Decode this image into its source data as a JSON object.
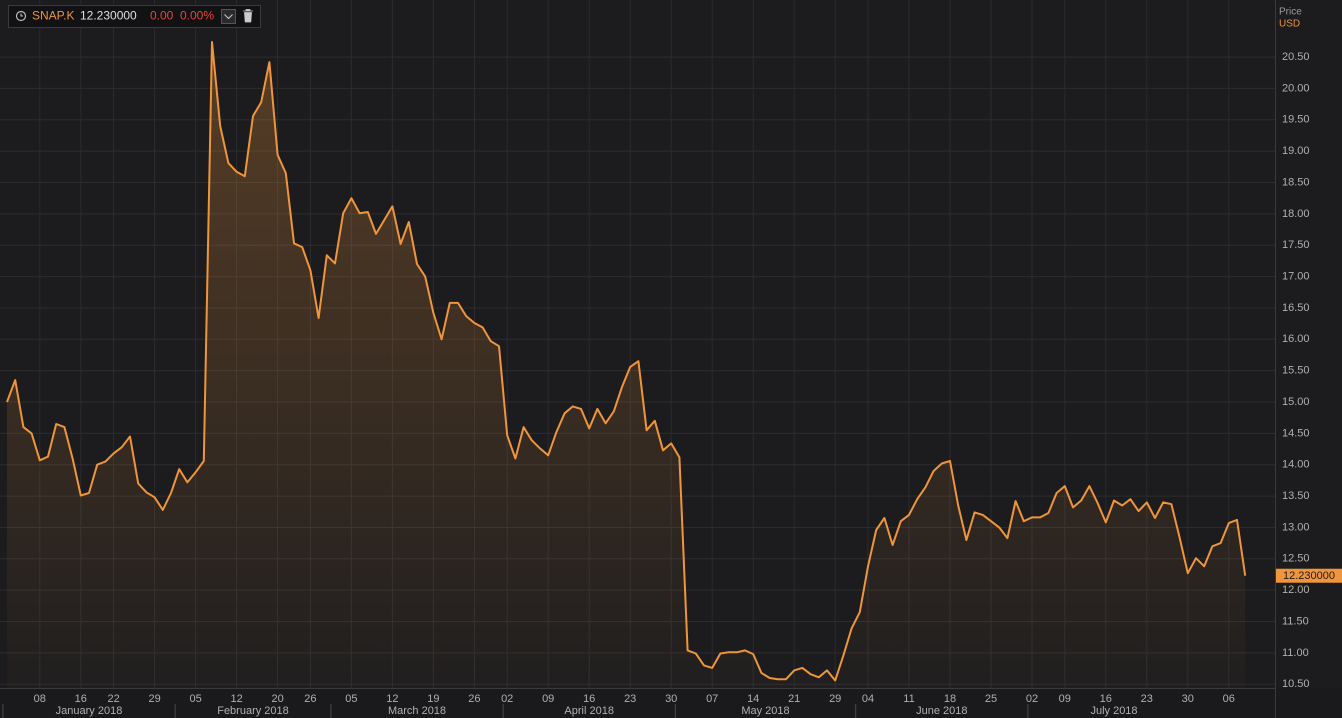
{
  "header": {
    "symbol": "SNAP.K",
    "price": "12.230000",
    "change": "0.00",
    "change_pct": "0.00%"
  },
  "chart_data": {
    "type": "line",
    "y_axis_title": "Price",
    "y_axis_unit": "USD",
    "color": "#f0953a",
    "grid": true,
    "values": [
      15.0,
      15.35,
      14.6,
      14.5,
      14.07,
      14.13,
      14.65,
      14.6,
      14.1,
      13.51,
      13.55,
      14.0,
      14.05,
      14.18,
      14.28,
      14.45,
      13.7,
      13.56,
      13.48,
      13.28,
      13.55,
      13.93,
      13.72,
      13.88,
      14.06,
      20.74,
      19.4,
      18.81,
      18.67,
      18.6,
      19.56,
      19.78,
      20.42,
      18.94,
      18.65,
      17.53,
      17.47,
      17.1,
      16.34,
      17.34,
      17.21,
      18.01,
      18.25,
      18.01,
      18.03,
      17.68,
      17.9,
      18.12,
      17.52,
      17.87,
      17.2,
      17.0,
      16.42,
      16.0,
      16.58,
      16.58,
      16.37,
      16.26,
      16.19,
      15.97,
      15.89,
      14.47,
      14.1,
      14.6,
      14.39,
      14.26,
      14.15,
      14.52,
      14.82,
      14.93,
      14.89,
      14.58,
      14.89,
      14.66,
      14.85,
      15.24,
      15.56,
      15.65,
      14.55,
      14.7,
      14.23,
      14.34,
      14.12,
      11.04,
      10.99,
      10.8,
      10.76,
      10.99,
      11.01,
      11.01,
      11.04,
      10.98,
      10.68,
      10.6,
      10.58,
      10.58,
      10.72,
      10.76,
      10.66,
      10.61,
      10.72,
      10.56,
      10.96,
      11.39,
      11.65,
      12.38,
      12.96,
      13.15,
      12.72,
      13.1,
      13.2,
      13.45,
      13.64,
      13.9,
      14.02,
      14.06,
      13.35,
      12.8,
      13.24,
      13.2,
      13.1,
      13.0,
      12.83,
      13.42,
      13.1,
      13.16,
      13.16,
      13.23,
      13.55,
      13.66,
      13.32,
      13.43,
      13.66,
      13.39,
      13.08,
      13.43,
      13.35,
      13.45,
      13.26,
      13.4,
      13.15,
      13.4,
      13.37,
      12.84,
      12.27,
      12.51,
      12.38,
      12.7,
      12.75,
      13.07,
      13.12,
      12.23
    ],
    "xticks": [
      {
        "value": 4,
        "label": "08"
      },
      {
        "value": 9,
        "label": "16"
      },
      {
        "value": 13,
        "label": "22"
      },
      {
        "value": 18,
        "label": "29"
      },
      {
        "value": 23,
        "label": "05"
      },
      {
        "value": 28,
        "label": "12"
      },
      {
        "value": 33,
        "label": "20"
      },
      {
        "value": 37,
        "label": "26"
      },
      {
        "value": 42,
        "label": "05"
      },
      {
        "value": 47,
        "label": "12"
      },
      {
        "value": 52,
        "label": "19"
      },
      {
        "value": 57,
        "label": "26"
      },
      {
        "value": 61,
        "label": "02"
      },
      {
        "value": 66,
        "label": "09"
      },
      {
        "value": 71,
        "label": "16"
      },
      {
        "value": 76,
        "label": "23"
      },
      {
        "value": 81,
        "label": "30"
      },
      {
        "value": 86,
        "label": "07"
      },
      {
        "value": 91,
        "label": "14"
      },
      {
        "value": 96,
        "label": "21"
      },
      {
        "value": 101,
        "label": "29"
      },
      {
        "value": 105,
        "label": "04"
      },
      {
        "value": 110,
        "label": "11"
      },
      {
        "value": 115,
        "label": "18"
      },
      {
        "value": 120,
        "label": "25"
      },
      {
        "value": 125,
        "label": "02"
      },
      {
        "value": 129,
        "label": "09"
      },
      {
        "value": 134,
        "label": "16"
      },
      {
        "value": 139,
        "label": "23"
      },
      {
        "value": 144,
        "label": "30"
      },
      {
        "value": 149,
        "label": "06"
      }
    ],
    "months": [
      {
        "label": "January 2018",
        "start": 0,
        "end": 21
      },
      {
        "label": "February 2018",
        "start": 21,
        "end": 40
      },
      {
        "label": "March 2018",
        "start": 40,
        "end": 61
      },
      {
        "label": "April 2018",
        "start": 61,
        "end": 82
      },
      {
        "label": "May 2018",
        "start": 82,
        "end": 104
      },
      {
        "label": "June 2018",
        "start": 104,
        "end": 125
      },
      {
        "label": "July 2018",
        "start": 125,
        "end": 146
      }
    ],
    "ylim": [
      10.44,
      21.41
    ],
    "yticks": [
      {
        "value": 10.5,
        "label": "10.50"
      },
      {
        "value": 11,
        "label": "11.00"
      },
      {
        "value": 11.5,
        "label": "11.50"
      },
      {
        "value": 12,
        "label": "12.00"
      },
      {
        "value": 12.5,
        "label": "12.50"
      },
      {
        "value": 13,
        "label": "13.00"
      },
      {
        "value": 13.5,
        "label": "13.50"
      },
      {
        "value": 14,
        "label": "14.00"
      },
      {
        "value": 14.5,
        "label": "14.50"
      },
      {
        "value": 15,
        "label": "15.00"
      },
      {
        "value": 15.5,
        "label": "15.50"
      },
      {
        "value": 16,
        "label": "16.00"
      },
      {
        "value": 16.5,
        "label": "16.50"
      },
      {
        "value": 17,
        "label": "17.00"
      },
      {
        "value": 17.5,
        "label": "17.50"
      },
      {
        "value": 18,
        "label": "18.00"
      },
      {
        "value": 18.5,
        "label": "18.50"
      },
      {
        "value": 19,
        "label": "19.00"
      },
      {
        "value": 19.5,
        "label": "19.50"
      },
      {
        "value": 20,
        "label": "20.00"
      },
      {
        "value": 20.5,
        "label": "20.50"
      }
    ]
  }
}
